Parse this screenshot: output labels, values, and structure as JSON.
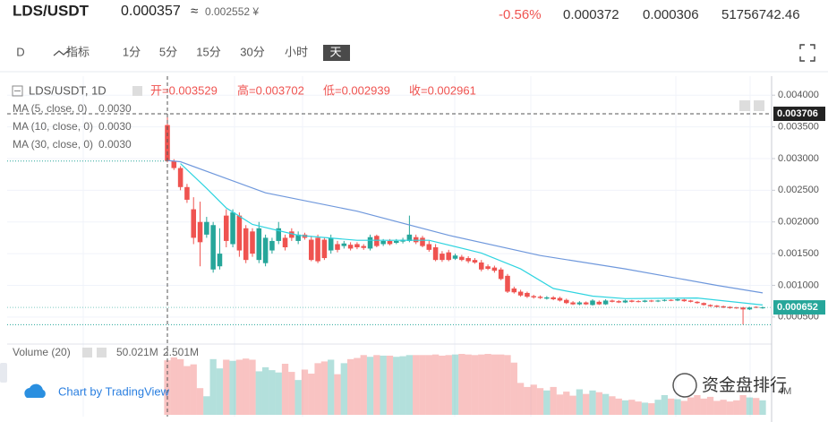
{
  "header": {
    "symbol": "LDS/USDT",
    "price": "0.000357",
    "approx_sign": "≈",
    "converted": "0.002552 ¥",
    "change": "-0.56%",
    "high": "0.000372",
    "low": "0.000306",
    "volume": "51756742.46"
  },
  "toolbar": {
    "items": [
      "D",
      "指标",
      "1分",
      "5分",
      "15分",
      "30分",
      "小时",
      "天"
    ],
    "selected_index": 7
  },
  "footer": {
    "attribution": "Chart by TradingView",
    "watermark": "资金盘排行"
  },
  "chart_data": {
    "type": "candlestick",
    "title": "LDS/USDT, 1D",
    "ohlc_legend": [
      "开=0.003529",
      "高=0.003702",
      "低=0.002939",
      "收=0.002961"
    ],
    "up_color": "#26a69a",
    "down_color": "#ef5350",
    "ylim": [
      0.00013,
      0.0043
    ],
    "yticks": [
      {
        "value": 0.0005,
        "label": "0.000500"
      },
      {
        "value": 0.001,
        "label": "0.001000"
      },
      {
        "value": 0.0015,
        "label": "0.001500"
      },
      {
        "value": 0.002,
        "label": "0.002000"
      },
      {
        "value": 0.0025,
        "label": "0.002500"
      },
      {
        "value": 0.003,
        "label": "0.003000"
      },
      {
        "value": 0.0035,
        "label": "0.003500"
      },
      {
        "value": 0.004,
        "label": "0.004000"
      }
    ],
    "grid": true,
    "open": [
      0.003529,
      0.00296,
      0.00285,
      0.00255,
      0.0022,
      0.002,
      0.0018,
      0.00125,
      0.0013,
      0.0021,
      0.00165,
      0.0021,
      0.0019,
      0.00185,
      0.0014,
      0.00135,
      0.00155,
      0.0017,
      0.00175,
      0.00185,
      0.0017,
      0.0018,
      0.00172,
      0.00175,
      0.00172,
      0.00155,
      0.00165,
      0.00162,
      0.00164,
      0.00165,
      0.00162,
      0.00158,
      0.00178,
      0.00165,
      0.0017,
      0.00167,
      0.00169,
      0.0017,
      0.00176,
      0.00175,
      0.00165,
      0.0016,
      0.0015,
      0.00152,
      0.00142,
      0.00145,
      0.00143,
      0.0014,
      0.00136,
      0.0013,
      0.00128,
      0.00125,
      0.00115,
      0.00095,
      0.0009,
      0.00088,
      0.00083,
      0.00082,
      0.00079,
      0.00081,
      0.0008,
      0.00077,
      0.00073,
      0.0007,
      0.00073,
      0.00069,
      0.00074,
      0.0007,
      0.00076,
      0.00075,
      0.00073,
      0.00076,
      0.00075,
      0.00074,
      0.00076,
      0.000745,
      0.000755,
      0.00077,
      0.00076,
      0.000775,
      0.00076,
      0.00074,
      0.00072,
      0.00069,
      0.00068,
      0.00067,
      0.00066,
      0.00065,
      0.00065,
      0.00062,
      0.00066,
      0.00064
    ],
    "high": [
      0.003702,
      0.00299,
      0.00288,
      0.0026,
      0.00239,
      0.00232,
      0.00208,
      0.002,
      0.0019,
      0.0022,
      0.0022,
      0.00215,
      0.00195,
      0.0019,
      0.002,
      0.0018,
      0.00175,
      0.002,
      0.0018,
      0.0019,
      0.00185,
      0.00183,
      0.00178,
      0.0018,
      0.00176,
      0.0018,
      0.0017,
      0.0017,
      0.00168,
      0.00168,
      0.00165,
      0.0018,
      0.0018,
      0.00173,
      0.00173,
      0.00173,
      0.00175,
      0.0021,
      0.0018,
      0.00178,
      0.0017,
      0.00165,
      0.00154,
      0.00156,
      0.0015,
      0.00148,
      0.00146,
      0.00143,
      0.0014,
      0.00133,
      0.00131,
      0.00128,
      0.00118,
      0.00098,
      0.00093,
      0.0009,
      0.00085,
      0.00084,
      0.00083,
      0.00083,
      0.00082,
      0.00079,
      0.00075,
      0.00075,
      0.000745,
      0.00078,
      0.00076,
      0.00078,
      0.000775,
      0.000765,
      0.000775,
      0.00077,
      0.000765,
      0.00077,
      0.00077,
      0.00077,
      0.00078,
      0.00078,
      0.00079,
      0.000785,
      0.00077,
      0.00075,
      0.00073,
      0.0007,
      0.00069,
      0.00068,
      0.00067,
      0.00066,
      0.00066,
      0.00066,
      0.00067,
      0.000665
    ],
    "low": [
      0.002939,
      0.00282,
      0.0025,
      0.0023,
      0.00165,
      0.0013,
      0.00175,
      0.0012,
      0.00125,
      0.0016,
      0.0016,
      0.00145,
      0.00135,
      0.00145,
      0.00135,
      0.0013,
      0.0015,
      0.00165,
      0.00155,
      0.0017,
      0.00165,
      0.00172,
      0.00138,
      0.00135,
      0.0014,
      0.0015,
      0.00152,
      0.00158,
      0.00155,
      0.00157,
      0.00156,
      0.00155,
      0.0016,
      0.00162,
      0.00163,
      0.00165,
      0.00166,
      0.00168,
      0.00165,
      0.0016,
      0.00153,
      0.00138,
      0.00137,
      0.00138,
      0.0014,
      0.00138,
      0.00135,
      0.00134,
      0.00122,
      0.00124,
      0.0012,
      0.00108,
      0.00088,
      0.00087,
      0.00082,
      0.0008,
      0.00079,
      0.000785,
      0.000775,
      0.000765,
      0.000745,
      0.000705,
      0.00069,
      0.000685,
      0.00069,
      0.00068,
      0.00069,
      0.00069,
      0.00073,
      0.00072,
      0.00072,
      0.00073,
      0.00073,
      0.00073,
      0.000735,
      0.000735,
      0.000745,
      0.00075,
      0.00075,
      0.00074,
      0.00073,
      0.00071,
      0.00068,
      0.00066,
      0.00065,
      0.00064,
      0.00063,
      0.00063,
      0.00038,
      0.00061,
      0.00064,
      0.00063
    ],
    "close": [
      0.002961,
      0.00285,
      0.00255,
      0.00235,
      0.00175,
      0.00168,
      0.002,
      0.00195,
      0.0015,
      0.0017,
      0.00215,
      0.00155,
      0.0014,
      0.0015,
      0.0019,
      0.00175,
      0.0017,
      0.0019,
      0.0016,
      0.00175,
      0.0018,
      0.00175,
      0.0014,
      0.00138,
      0.00143,
      0.00175,
      0.00156,
      0.00166,
      0.00158,
      0.0016,
      0.00159,
      0.00176,
      0.00162,
      0.0017,
      0.00165,
      0.0017,
      0.00172,
      0.0018,
      0.00168,
      0.00162,
      0.00156,
      0.0014,
      0.0014,
      0.0014,
      0.00147,
      0.0014,
      0.00138,
      0.00136,
      0.00125,
      0.00126,
      0.00123,
      0.0011,
      0.0009,
      0.00089,
      0.00084,
      0.00082,
      0.00081,
      0.0008,
      0.00081,
      0.00078,
      0.00076,
      0.00072,
      0.0007,
      0.00073,
      0.0007,
      0.00076,
      0.0007,
      0.00076,
      0.00074,
      0.00073,
      0.00076,
      0.00074,
      0.00074,
      0.00076,
      0.000745,
      0.00076,
      0.00077,
      0.00076,
      0.00078,
      0.00075,
      0.00074,
      0.00072,
      0.00069,
      0.00067,
      0.00066,
      0.00065,
      0.00064,
      0.00064,
      0.00062,
      0.00065,
      0.00065,
      0.000652
    ],
    "volume": [
      9400000,
      9900000,
      9600000,
      8400000,
      8700000,
      4600000,
      3200000,
      9600000,
      8000000,
      9500000,
      9300000,
      9500000,
      9700000,
      9500000,
      7500000,
      8200000,
      7700000,
      7300000,
      8800000,
      7400000,
      6000000,
      7800000,
      7100000,
      8900000,
      9200000,
      9500000,
      7000000,
      8900000,
      9600000,
      9800000,
      10300000,
      10000000,
      10300000,
      10200000,
      10200000,
      10000000,
      10100000,
      10300000,
      10300000,
      10300000,
      10300000,
      10400000,
      10200000,
      10300000,
      10400000,
      10500000,
      10400000,
      10300000,
      10400000,
      10500000,
      10400000,
      10400000,
      10300000,
      9000000,
      5500000,
      4800000,
      5200000,
      4600000,
      4200000,
      4800000,
      3500000,
      4000000,
      3300000,
      4400000,
      3600000,
      4200000,
      3900000,
      3600000,
      3200000,
      2800000,
      2500000,
      2600000,
      2300000,
      2100000,
      2000000,
      2600000,
      3400000,
      2800000,
      2700000,
      2400000,
      3000000,
      3400000,
      2800000,
      3100000,
      2400000,
      2600000,
      2300000,
      2500000,
      3400000,
      3000000,
      2900000,
      2500000
    ],
    "indicators": [
      {
        "name": "MA (5, close, 0)",
        "value_label": "0.0030",
        "color": "#f5a623"
      },
      {
        "name": "MA (10, close, 0)",
        "value_label": "0.0030",
        "color": "#2fd4e0",
        "x": [
          2,
          6,
          9,
          13,
          20,
          29,
          40,
          48,
          54,
          59,
          65,
          70,
          81,
          91
        ],
        "values": [
          0.00292,
          0.00253,
          0.00222,
          0.00196,
          0.00179,
          0.00171,
          0.00171,
          0.00151,
          0.00126,
          0.00095,
          0.00083,
          0.00079,
          0.0008,
          0.00069
        ]
      },
      {
        "name": "MA (30, close, 0)",
        "value_label": "0.0030",
        "color": "#6f98dc",
        "x": [
          0,
          2,
          15,
          29,
          43,
          57,
          70,
          84,
          91
        ],
        "values": [
          0.00297,
          0.00295,
          0.00246,
          0.00217,
          0.00179,
          0.00147,
          0.00126,
          0.001,
          0.00088
        ]
      }
    ],
    "crosshair_price": 0.003706,
    "last_price": 0.000652,
    "volume_title": "Volume (20)",
    "volume_labels": [
      "50.021M",
      "2.501M"
    ],
    "volume_ylim": [
      0,
      10500000
    ],
    "volume_yticks": [
      {
        "value": 4000000,
        "label": "4M"
      }
    ]
  }
}
